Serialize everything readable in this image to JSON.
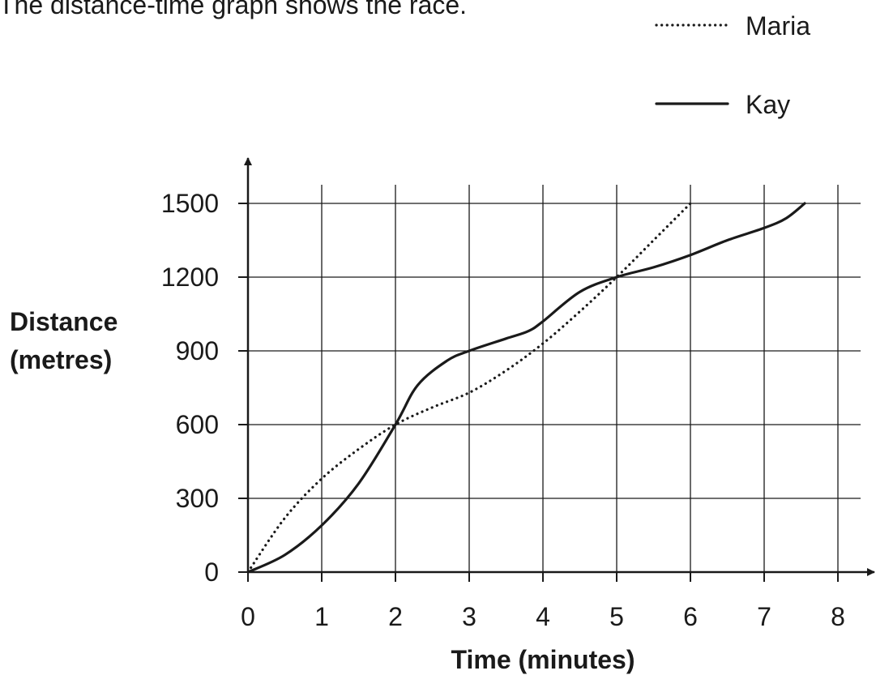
{
  "intro_text": "The distance-time graph shows the race.",
  "chart_data": {
    "type": "line",
    "xlabel": "Time (minutes)",
    "ylabel": [
      "Distance",
      "(metres)"
    ],
    "xlim": [
      0,
      8
    ],
    "ylim": [
      0,
      1500
    ],
    "x_ticks": [
      0,
      1,
      2,
      3,
      4,
      5,
      6,
      7,
      8
    ],
    "y_ticks": [
      0,
      300,
      600,
      900,
      1200,
      1500
    ],
    "grid": true,
    "legend_position": "top-right",
    "series": [
      {
        "name": "Maria",
        "style": "dotted",
        "points": [
          [
            0,
            0
          ],
          [
            0.5,
            220
          ],
          [
            1,
            380
          ],
          [
            1.5,
            500
          ],
          [
            2,
            600
          ],
          [
            2.5,
            670
          ],
          [
            3,
            730
          ],
          [
            3.5,
            820
          ],
          [
            4,
            930
          ],
          [
            4.5,
            1060
          ],
          [
            5,
            1200
          ],
          [
            5.5,
            1350
          ],
          [
            6,
            1500
          ]
        ]
      },
      {
        "name": "Kay",
        "style": "solid",
        "points": [
          [
            0,
            0
          ],
          [
            0.5,
            70
          ],
          [
            1,
            190
          ],
          [
            1.5,
            360
          ],
          [
            2,
            600
          ],
          [
            2.3,
            760
          ],
          [
            2.7,
            860
          ],
          [
            3,
            900
          ],
          [
            3.5,
            950
          ],
          [
            3.8,
            980
          ],
          [
            4,
            1020
          ],
          [
            4.5,
            1140
          ],
          [
            5,
            1200
          ],
          [
            5.5,
            1240
          ],
          [
            6,
            1290
          ],
          [
            6.5,
            1350
          ],
          [
            7,
            1400
          ],
          [
            7.3,
            1440
          ],
          [
            7.55,
            1500
          ]
        ]
      }
    ]
  }
}
